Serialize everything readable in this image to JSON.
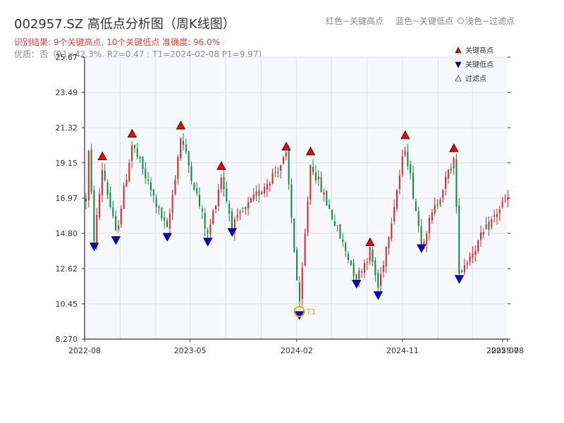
{
  "header": {
    "title": "002957.SZ 高低点分析图（周K线图）",
    "result": "识别结果: 9个关键高点, 10个关键低点  准确度: 96.0%",
    "quality": "优质：否（R1=42.3%, R2=0.47 ; T1=2024-02-08 P1=9.97）"
  },
  "top_legend": {
    "red": "红色−关键高点",
    "blue": "蓝色−关键低点",
    "light": "浅色−过滤点"
  },
  "colors": {
    "up": "#e0232a",
    "down": "#10893e",
    "high_marker": "#ff0000",
    "low_marker": "#0000ee",
    "plot_bg": "#f6f8fb",
    "grid": "#dde2ea",
    "annotation": "#f0a020"
  },
  "chart_data": {
    "type": "candlestick",
    "title": "002957.SZ 高低点分析图（周K线图）",
    "ylim": [
      8.27,
      25.67
    ],
    "y_ticks": [
      8.27,
      10.45,
      12.62,
      14.8,
      16.97,
      19.15,
      21.32,
      23.49,
      25.67
    ],
    "y_tick_labels": [
      "8.270",
      "10.45",
      "12.62",
      "14.80",
      "16.97",
      "19.15",
      "21.32",
      "23.49",
      "25.67"
    ],
    "x_ticks": [
      "2022-08",
      "2023-05",
      "2024-02",
      "2024-11",
      "2025-07",
      "2025-08"
    ],
    "grid": true,
    "legend_position": "top-right",
    "legend": [
      {
        "label": "关键高点",
        "marker": "triangle-up",
        "color": "#ff0000"
      },
      {
        "label": "关键低点",
        "marker": "triangle-down",
        "color": "#0000ee"
      },
      {
        "label": "过滤点",
        "marker": "triangle-up-hollow",
        "color": "#888888"
      }
    ],
    "annotation": {
      "label": "T1",
      "date": "2024-02-08",
      "value": 9.97
    },
    "key_highs": [
      {
        "date": "2022-09-16",
        "value": 19.2
      },
      {
        "date": "2022-12-02",
        "value": 20.6
      },
      {
        "date": "2023-04-07",
        "value": 21.1
      },
      {
        "date": "2023-07-21",
        "value": 18.6
      },
      {
        "date": "2024-01-05",
        "value": 19.8
      },
      {
        "date": "2024-03-08",
        "value": 19.5
      },
      {
        "date": "2024-08-09",
        "value": 13.9
      },
      {
        "date": "2024-11-08",
        "value": 20.5
      },
      {
        "date": "2025-03-14",
        "value": 19.7
      }
    ],
    "key_lows": [
      {
        "date": "2022-08-26",
        "value": 14.2
      },
      {
        "date": "2022-10-21",
        "value": 14.6
      },
      {
        "date": "2023-03-03",
        "value": 14.8
      },
      {
        "date": "2023-06-16",
        "value": 14.5
      },
      {
        "date": "2023-08-18",
        "value": 15.1
      },
      {
        "date": "2024-02-08",
        "value": 9.97
      },
      {
        "date": "2024-07-05",
        "value": 11.9
      },
      {
        "date": "2024-08-30",
        "value": 11.2
      },
      {
        "date": "2024-12-20",
        "value": 14.1
      },
      {
        "date": "2025-03-28",
        "value": 12.2
      }
    ],
    "price_path": [
      {
        "date": "2022-08-05",
        "value": 22.2
      },
      {
        "date": "2022-08-26",
        "value": 14.3
      },
      {
        "date": "2022-09-16",
        "value": 18.9
      },
      {
        "date": "2022-10-21",
        "value": 14.7
      },
      {
        "date": "2022-12-02",
        "value": 20.3
      },
      {
        "date": "2023-03-03",
        "value": 14.9
      },
      {
        "date": "2023-04-07",
        "value": 20.8
      },
      {
        "date": "2023-06-16",
        "value": 14.6
      },
      {
        "date": "2023-07-21",
        "value": 18.4
      },
      {
        "date": "2023-08-18",
        "value": 15.2
      },
      {
        "date": "2024-01-05",
        "value": 19.5
      },
      {
        "date": "2024-02-08",
        "value": 10.1
      },
      {
        "date": "2024-03-08",
        "value": 19.2
      },
      {
        "date": "2024-07-05",
        "value": 12.0
      },
      {
        "date": "2024-08-09",
        "value": 13.7
      },
      {
        "date": "2024-08-30",
        "value": 11.4
      },
      {
        "date": "2024-11-08",
        "value": 20.2
      },
      {
        "date": "2024-12-20",
        "value": 14.2
      },
      {
        "date": "2025-03-14",
        "value": 19.4
      },
      {
        "date": "2025-03-28",
        "value": 12.4
      },
      {
        "date": "2025-07-25",
        "value": 16.9
      }
    ]
  }
}
